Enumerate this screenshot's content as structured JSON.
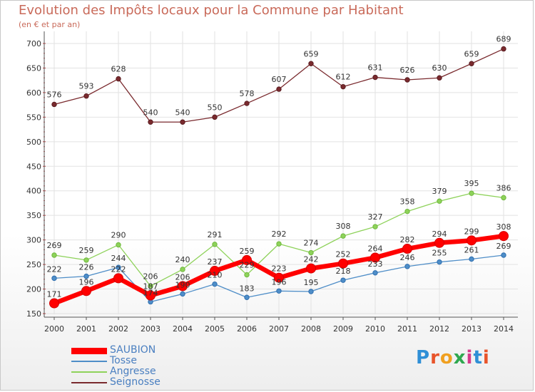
{
  "chart_data": {
    "type": "line",
    "title": "Evolution des Impôts locaux pour la Commune par Habitant",
    "subtitle": "(en € et par an)",
    "xlabel": "",
    "ylabel": "",
    "ylim": [
      150,
      700
    ],
    "yticks": [
      150,
      200,
      250,
      300,
      350,
      400,
      450,
      500,
      550,
      600,
      650,
      700
    ],
    "categories": [
      "2000",
      "2001",
      "2002",
      "2003",
      "2004",
      "2005",
      "2006",
      "2007",
      "2008",
      "2009",
      "2010",
      "2011",
      "2012",
      "2013",
      "2014"
    ],
    "grid": true,
    "legend_position": "bottom-left",
    "series": [
      {
        "name": "Seignosse",
        "color": "#7a2a2e",
        "values": [
          576,
          593,
          628,
          540,
          540,
          550,
          578,
          607,
          659,
          612,
          631,
          626,
          630,
          659,
          689
        ]
      },
      {
        "name": "Angresse",
        "color": "#8ed25a",
        "values": [
          269,
          259,
          290,
          206,
          240,
          291,
          229,
          292,
          274,
          308,
          327,
          358,
          379,
          395,
          386
        ]
      },
      {
        "name": "Tosse",
        "color": "#4f8ec8",
        "values": [
          222,
          226,
          244,
          174,
          190,
          210,
          183,
          196,
          195,
          218,
          233,
          246,
          255,
          261,
          269
        ]
      },
      {
        "name": "SAUBION",
        "color": "#ff0000",
        "values": [
          171,
          196,
          222,
          187,
          206,
          237,
          259,
          223,
          242,
          252,
          264,
          282,
          294,
          299,
          308
        ]
      }
    ]
  },
  "brand": {
    "text": "Proxiti"
  }
}
